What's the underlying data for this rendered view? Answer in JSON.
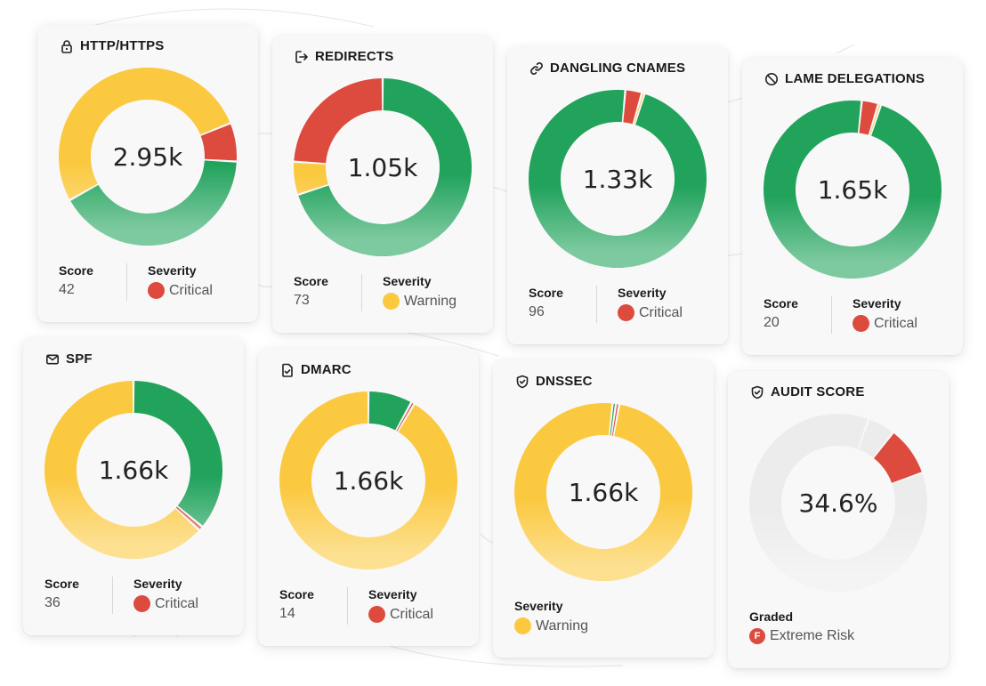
{
  "colors": {
    "critical": "#dc4b3e",
    "warning": "#fbc940",
    "good": "#21a35c",
    "empty": "#ececec"
  },
  "labels": {
    "score": "Score",
    "severity": "Severity",
    "graded": "Graded"
  },
  "chart_data": [
    {
      "type": "pie",
      "title": "HTTP/HTTPS",
      "icon": "lock-icon",
      "center_label": "2.95k",
      "slices": [
        {
          "name": "critical",
          "value": 7
        },
        {
          "name": "good",
          "value": 41
        },
        {
          "name": "warning",
          "value": 52
        }
      ],
      "score": "42",
      "severity": "Critical"
    },
    {
      "type": "pie",
      "title": "REDIRECTS",
      "icon": "redirect-icon",
      "center_label": "1.05k",
      "slices": [
        {
          "name": "good",
          "value": 70
        },
        {
          "name": "warning",
          "value": 6
        },
        {
          "name": "critical",
          "value": 24
        }
      ],
      "score": "73",
      "severity": "Warning"
    },
    {
      "type": "pie",
      "title": "DANGLING CNAMES",
      "icon": "link-icon",
      "center_label": "1.33k",
      "slices": [
        {
          "name": "critical",
          "value": 3
        },
        {
          "name": "warning",
          "value": 0.5
        },
        {
          "name": "good",
          "value": 96.5
        }
      ],
      "score": "96",
      "severity": "Critical"
    },
    {
      "type": "pie",
      "title": "LAME DELEGATIONS",
      "icon": "ban-icon",
      "center_label": "1.65k",
      "slices": [
        {
          "name": "critical",
          "value": 3
        },
        {
          "name": "warning",
          "value": 0.5
        },
        {
          "name": "good",
          "value": 96.5
        }
      ],
      "score": "20",
      "severity": "Critical"
    },
    {
      "type": "pie",
      "title": "SPF",
      "icon": "mail-icon",
      "center_label": "1.66k",
      "slices": [
        {
          "name": "good",
          "value": 36
        },
        {
          "name": "critical",
          "value": 0.8
        },
        {
          "name": "warning",
          "value": 63.2
        }
      ],
      "score": "36",
      "severity": "Critical"
    },
    {
      "type": "pie",
      "title": "DMARC",
      "icon": "file-check-icon",
      "center_label": "1.66k",
      "slices": [
        {
          "name": "good",
          "value": 8
        },
        {
          "name": "critical",
          "value": 0.6
        },
        {
          "name": "warning",
          "value": 91.4
        }
      ],
      "score": "14",
      "severity": "Critical"
    },
    {
      "type": "pie",
      "title": "DNSSEC",
      "icon": "shield-icon",
      "center_label": "1.66k",
      "slices": [
        {
          "name": "good",
          "value": 0.6
        },
        {
          "name": "critical",
          "value": 0.6
        },
        {
          "name": "warning",
          "value": 98.8
        }
      ],
      "severity": "Warning"
    },
    {
      "type": "pie",
      "title": "AUDIT SCORE",
      "icon": "shield-icon",
      "center_label": "34.6%",
      "slices": [
        {
          "name": "empty",
          "value": 5
        },
        {
          "name": "critical",
          "value": 9
        },
        {
          "name": "empty",
          "value": 86
        }
      ],
      "graded_letter": "F",
      "graded": "Extreme Risk"
    }
  ]
}
